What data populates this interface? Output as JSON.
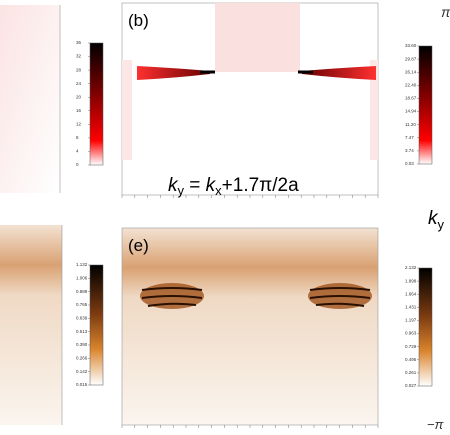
{
  "panels": {
    "top_right": {
      "label": "(b)",
      "equation": [
        "k",
        "y",
        " = ",
        "k",
        "x",
        "+1.7π/2a"
      ]
    },
    "bottom_right": {
      "label": "(e)"
    }
  },
  "colorbars": [
    {
      "ticks": [
        "36",
        "32",
        "28",
        "24",
        "20",
        "16",
        "12",
        "8",
        "4",
        "0"
      ]
    },
    {
      "ticks": [
        "33.60",
        "29.87",
        "26.14",
        "22.40",
        "18.67",
        "14.94",
        "11.20",
        "7.47",
        "3.74",
        "0.03"
      ]
    },
    {
      "ticks": [
        "1.132",
        "1.006",
        "0.889",
        "0.765",
        "0.639",
        "0.513",
        "0.390",
        "0.266",
        "0.142",
        "0.015"
      ]
    },
    {
      "ticks": [
        "2.132",
        "1.898",
        "1.664",
        "1.431",
        "1.197",
        "0.963",
        "0.729",
        "0.495",
        "0.261",
        "0.027"
      ]
    }
  ],
  "side": {
    "top": "π",
    "axis": "k",
    "axis_sub": "y",
    "bottom": "−π"
  }
}
